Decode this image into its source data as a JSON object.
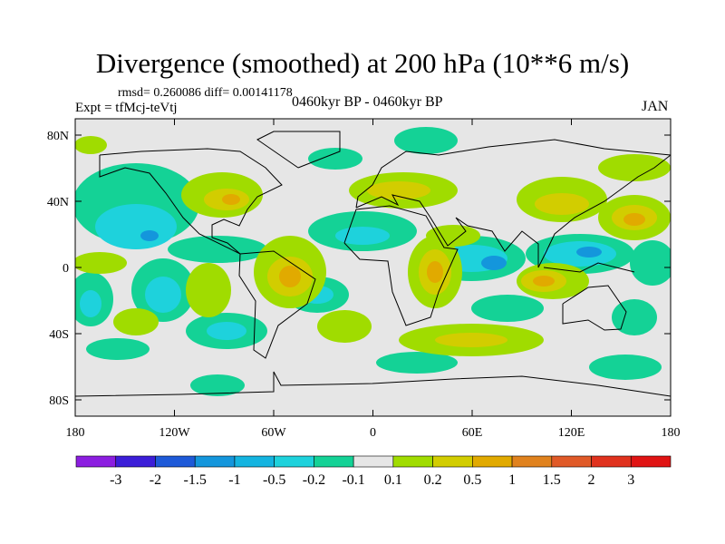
{
  "title": "Divergence (smoothed) at 200 hPa (10**6 m/s)",
  "stats": "rmsd= 0.260086 diff= 0.00141178",
  "experiment": "Expt = tfMcj-teVtj",
  "period": "0460kyr BP - 0460kyr BP",
  "month": "JAN",
  "map": {
    "lat_ticks": [
      {
        "label": "80N",
        "lat": 80
      },
      {
        "label": "40N",
        "lat": 40
      },
      {
        "label": "0",
        "lat": 0
      },
      {
        "label": "40S",
        "lat": -40
      },
      {
        "label": "80S",
        "lat": -80
      }
    ],
    "lon_ticks": [
      {
        "label": "180",
        "lon": -180
      },
      {
        "label": "120W",
        "lon": -120
      },
      {
        "label": "60W",
        "lon": -60
      },
      {
        "label": "0",
        "lon": 0
      },
      {
        "label": "60E",
        "lon": 60
      },
      {
        "label": "120E",
        "lon": 120
      },
      {
        "label": "180",
        "lon": 180
      }
    ],
    "background_color": "#e6e6e6"
  },
  "colorbar": {
    "colors": [
      "#8c1ee0",
      "#3c1ed8",
      "#1e5ad8",
      "#1496dc",
      "#14b4e0",
      "#1ed2dc",
      "#14d296",
      "#e6e6e6",
      "#a0dc00",
      "#d2cd00",
      "#e1aa00",
      "#e0821e",
      "#e05a28",
      "#e0321e",
      "#e01414"
    ],
    "labels": [
      "-3",
      "-2",
      "-1.5",
      "-1",
      "-0.5",
      "-0.2",
      "-0.1",
      "0.1",
      "0.2",
      "0.5",
      "1",
      "1.5",
      "2",
      "3"
    ]
  }
}
